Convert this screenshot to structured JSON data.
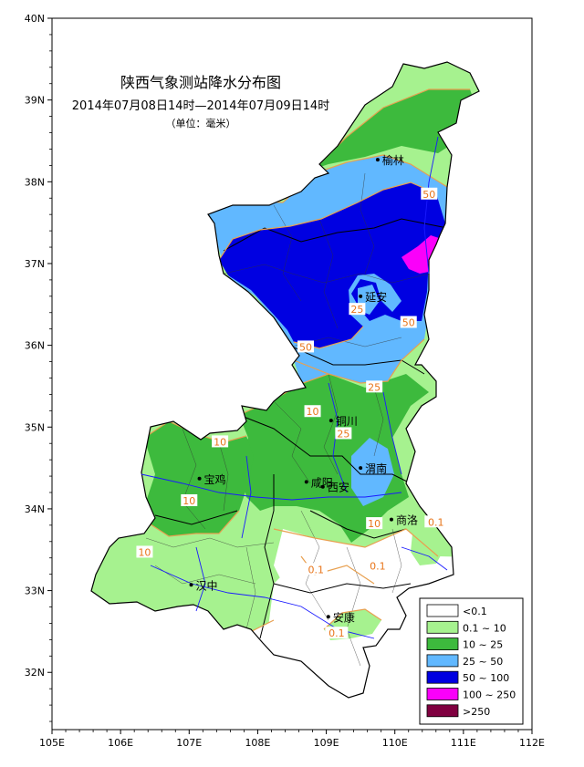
{
  "title": {
    "main": "陕西气象测站降水分布图",
    "period": "2014年07月08日14时—2014年07月09日14时",
    "unit": "（单位：毫米）"
  },
  "axes": {
    "y_ticks": [
      "40N",
      "39N",
      "38N",
      "37N",
      "36N",
      "35N",
      "34N",
      "33N",
      "32N"
    ],
    "x_ticks": [
      "105E",
      "106E",
      "107E",
      "108E",
      "109E",
      "110E",
      "111E",
      "112E"
    ]
  },
  "cities": [
    {
      "name": "榆林",
      "lon": 109.75,
      "lat": 38.27
    },
    {
      "name": "延安",
      "lon": 109.5,
      "lat": 36.6
    },
    {
      "name": "铜川",
      "lon": 109.07,
      "lat": 35.08
    },
    {
      "name": "宝鸡",
      "lon": 107.15,
      "lat": 34.37
    },
    {
      "name": "咸阳",
      "lon": 108.71,
      "lat": 34.33
    },
    {
      "name": "西安",
      "lon": 108.95,
      "lat": 34.27
    },
    {
      "name": "渭南",
      "lon": 109.5,
      "lat": 34.5
    },
    {
      "name": "商洛",
      "lon": 109.95,
      "lat": 33.87
    },
    {
      "name": "汉中",
      "lon": 107.03,
      "lat": 33.07
    },
    {
      "name": "安康",
      "lon": 109.03,
      "lat": 32.68
    }
  ],
  "contour_labels": [
    {
      "text": "50",
      "lon": 110.5,
      "lat": 37.85
    },
    {
      "text": "25",
      "lon": 109.45,
      "lat": 36.44
    },
    {
      "text": "50",
      "lon": 110.2,
      "lat": 36.28
    },
    {
      "text": "50",
      "lon": 108.7,
      "lat": 35.98
    },
    {
      "text": "25",
      "lon": 109.7,
      "lat": 35.49
    },
    {
      "text": "10",
      "lon": 108.8,
      "lat": 35.19
    },
    {
      "text": "25",
      "lon": 109.25,
      "lat": 34.92
    },
    {
      "text": "10",
      "lon": 107.45,
      "lat": 34.82
    },
    {
      "text": "10",
      "lon": 107.0,
      "lat": 34.1
    },
    {
      "text": "10",
      "lon": 109.7,
      "lat": 33.82
    },
    {
      "text": "0.1",
      "lon": 110.6,
      "lat": 33.84
    },
    {
      "text": "10",
      "lon": 106.35,
      "lat": 33.47
    },
    {
      "text": "0.1",
      "lon": 108.85,
      "lat": 33.26
    },
    {
      "text": "0.1",
      "lon": 109.75,
      "lat": 33.3
    },
    {
      "text": "0.1",
      "lon": 109.15,
      "lat": 32.48
    }
  ],
  "legend": {
    "placement": "bottom-right",
    "items": [
      {
        "label": "<0.1",
        "color": "#ffffff"
      },
      {
        "label": "0.1 ~ 10",
        "color": "#a6f28f"
      },
      {
        "label": "10 ~ 25",
        "color": "#3dba3d"
      },
      {
        "label": "25 ~ 50",
        "color": "#61b8ff"
      },
      {
        "label": "50 ~ 100",
        "color": "#0000e1"
      },
      {
        "label": "100 ~ 250",
        "color": "#fa00fa"
      },
      {
        "label": ">250",
        "color": "#800040"
      }
    ]
  }
}
